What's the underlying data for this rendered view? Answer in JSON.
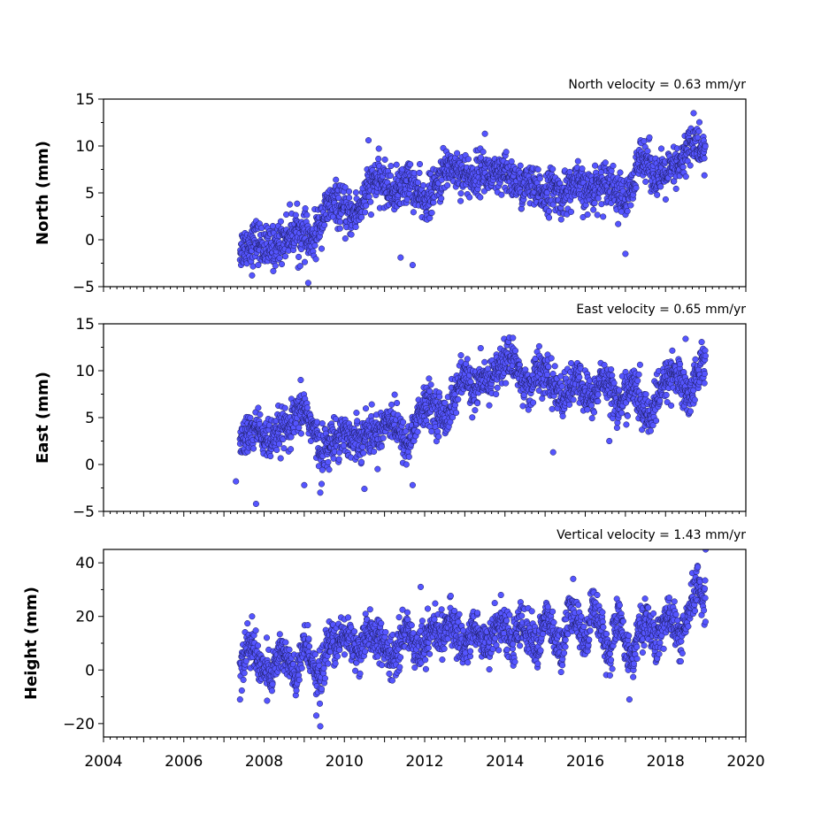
{
  "chart_data": [
    {
      "type": "scatter",
      "name": "north",
      "ylabel": "North (mm)",
      "annotation": "North velocity = 0.63 mm/yr",
      "xlim": [
        2004,
        2020
      ],
      "ylim": [
        -5,
        15
      ],
      "yticks": [
        "15",
        "10",
        "5",
        "0",
        "−5"
      ],
      "ytick_values": [
        15,
        10,
        5,
        0,
        -5
      ],
      "marker_color": "#5555ff",
      "series": [
        {
          "x": [
            2007.4,
            2007.6,
            2007.8,
            2008.0,
            2008.2,
            2008.4,
            2008.6,
            2008.8,
            2009.0,
            2009.2,
            2009.4,
            2009.6,
            2009.8,
            2010.0,
            2010.2,
            2010.4,
            2010.6,
            2010.8,
            2011.0,
            2011.2,
            2011.4,
            2011.6,
            2011.8,
            2012.0,
            2012.2,
            2012.4,
            2012.6,
            2012.8,
            2013.0,
            2013.2,
            2013.4,
            2013.6,
            2013.8,
            2014.0,
            2014.2,
            2014.4,
            2014.6,
            2014.8,
            2015.0,
            2015.2,
            2015.4,
            2015.6,
            2015.8,
            2016.0,
            2016.2,
            2016.4,
            2016.6,
            2016.8,
            2017.0,
            2017.2,
            2017.4,
            2017.6,
            2017.8,
            2018.0,
            2018.2,
            2018.4,
            2018.6,
            2018.8,
            2019.0
          ],
          "y": [
            -1.0,
            -0.5,
            0.0,
            -0.8,
            -1.0,
            -0.2,
            0.5,
            1.0,
            0.5,
            -0.5,
            2.0,
            3.5,
            4.0,
            3.0,
            2.5,
            3.5,
            5.5,
            6.5,
            6.0,
            5.0,
            5.5,
            6.5,
            5.0,
            4.0,
            5.0,
            6.5,
            8.0,
            7.5,
            7.0,
            6.5,
            7.5,
            7.0,
            6.5,
            7.0,
            6.5,
            5.5,
            6.0,
            5.0,
            5.0,
            5.5,
            4.5,
            5.5,
            6.0,
            5.0,
            5.5,
            6.0,
            6.5,
            5.0,
            4.0,
            5.5,
            9.5,
            8.0,
            6.5,
            7.0,
            7.5,
            8.0,
            10.5,
            10.0,
            9.0
          ]
        }
      ],
      "outliers": [
        [
          2007.7,
          -3.8
        ],
        [
          2008.9,
          -2.8
        ],
        [
          2009.1,
          -4.6
        ],
        [
          2011.4,
          -1.9
        ],
        [
          2011.7,
          -2.7
        ],
        [
          2010.6,
          10.6
        ],
        [
          2017.0,
          -1.5
        ],
        [
          2016.9,
          3.0
        ],
        [
          2013.5,
          11.3
        ],
        [
          2018.7,
          13.5
        ]
      ]
    },
    {
      "type": "scatter",
      "name": "east",
      "ylabel": "East (mm)",
      "annotation": "East velocity = 0.65 mm/yr",
      "xlim": [
        2004,
        2020
      ],
      "ylim": [
        -5,
        15
      ],
      "yticks": [
        "15",
        "10",
        "5",
        "0",
        "−5"
      ],
      "ytick_values": [
        15,
        10,
        5,
        0,
        -5
      ],
      "marker_color": "#5555ff",
      "series": [
        {
          "x": [
            2007.4,
            2007.6,
            2007.8,
            2008.0,
            2008.2,
            2008.4,
            2008.6,
            2008.8,
            2009.0,
            2009.2,
            2009.4,
            2009.6,
            2009.8,
            2010.0,
            2010.2,
            2010.4,
            2010.6,
            2010.8,
            2011.0,
            2011.2,
            2011.4,
            2011.6,
            2011.8,
            2012.0,
            2012.2,
            2012.4,
            2012.6,
            2012.8,
            2013.0,
            2013.2,
            2013.4,
            2013.6,
            2013.8,
            2014.0,
            2014.2,
            2014.4,
            2014.6,
            2014.8,
            2015.0,
            2015.2,
            2015.4,
            2015.6,
            2015.8,
            2016.0,
            2016.2,
            2016.4,
            2016.6,
            2016.8,
            2017.0,
            2017.2,
            2017.4,
            2017.6,
            2017.8,
            2018.0,
            2018.2,
            2018.4,
            2018.6,
            2018.8,
            2019.0
          ],
          "y": [
            2.5,
            3.0,
            4.0,
            3.0,
            2.0,
            4.0,
            3.5,
            5.0,
            6.0,
            4.0,
            1.5,
            2.0,
            3.0,
            3.5,
            2.5,
            3.0,
            3.5,
            3.0,
            4.5,
            5.0,
            3.0,
            2.0,
            5.0,
            6.0,
            6.5,
            5.0,
            5.5,
            8.0,
            9.5,
            8.0,
            8.5,
            9.0,
            10.0,
            11.0,
            11.5,
            9.0,
            8.0,
            10.0,
            9.5,
            8.5,
            7.0,
            8.0,
            9.0,
            7.5,
            7.0,
            9.0,
            9.0,
            6.0,
            7.5,
            8.5,
            6.0,
            5.0,
            7.0,
            9.0,
            10.0,
            8.5,
            7.0,
            10.0,
            11.5
          ]
        }
      ],
      "outliers": [
        [
          2007.3,
          -1.8
        ],
        [
          2007.8,
          -4.2
        ],
        [
          2009.0,
          -2.2
        ],
        [
          2009.4,
          -3.0
        ],
        [
          2010.5,
          -2.6
        ],
        [
          2011.7,
          -2.2
        ],
        [
          2015.2,
          1.3
        ],
        [
          2014.2,
          13.5
        ],
        [
          2018.5,
          13.4
        ],
        [
          2016.6,
          2.5
        ]
      ]
    },
    {
      "type": "scatter",
      "name": "height",
      "ylabel": "Height (mm)",
      "annotation": "Vertical velocity = 1.43 mm/yr",
      "xlim": [
        2004,
        2020
      ],
      "ylim": [
        -25,
        45
      ],
      "yticks": [
        "40",
        "20",
        "0",
        "−20"
      ],
      "ytick_values": [
        40,
        20,
        0,
        -20
      ],
      "marker_color": "#5555ff",
      "series": [
        {
          "x": [
            2007.4,
            2007.6,
            2007.8,
            2008.0,
            2008.2,
            2008.4,
            2008.6,
            2008.8,
            2009.0,
            2009.2,
            2009.4,
            2009.6,
            2009.8,
            2010.0,
            2010.2,
            2010.4,
            2010.6,
            2010.8,
            2011.0,
            2011.2,
            2011.4,
            2011.6,
            2011.8,
            2012.0,
            2012.2,
            2012.4,
            2012.6,
            2012.8,
            2013.0,
            2013.2,
            2013.4,
            2013.6,
            2013.8,
            2014.0,
            2014.2,
            2014.4,
            2014.6,
            2014.8,
            2015.0,
            2015.2,
            2015.4,
            2015.6,
            2015.8,
            2016.0,
            2016.2,
            2016.4,
            2016.6,
            2016.8,
            2017.0,
            2017.2,
            2017.4,
            2017.6,
            2017.8,
            2018.0,
            2018.2,
            2018.4,
            2018.6,
            2018.8,
            2019.0
          ],
          "y": [
            0,
            10,
            5,
            0,
            -2,
            8,
            3,
            -5,
            10,
            4,
            -5,
            12,
            8,
            14,
            10,
            6,
            14,
            12,
            8,
            3,
            12,
            15,
            8,
            10,
            16,
            12,
            18,
            14,
            8,
            16,
            12,
            9,
            18,
            15,
            10,
            18,
            13,
            8,
            20,
            14,
            5,
            22,
            18,
            10,
            25,
            16,
            5,
            20,
            10,
            4,
            18,
            16,
            10,
            20,
            18,
            10,
            22,
            32,
            25
          ]
        }
      ],
      "outliers": [
        [
          2007.4,
          -11
        ],
        [
          2009.3,
          -17
        ],
        [
          2009.4,
          -21
        ],
        [
          2007.7,
          20
        ],
        [
          2011.9,
          31
        ],
        [
          2019.0,
          45
        ],
        [
          2017.1,
          -11
        ],
        [
          2013.9,
          28
        ],
        [
          2015.7,
          34
        ]
      ]
    }
  ],
  "x_axis": {
    "tick_labels": [
      "2004",
      "2006",
      "2008",
      "2010",
      "2012",
      "2014",
      "2016",
      "2018",
      "2020"
    ],
    "tick_values": [
      2004,
      2006,
      2008,
      2010,
      2012,
      2014,
      2016,
      2018,
      2020
    ]
  }
}
